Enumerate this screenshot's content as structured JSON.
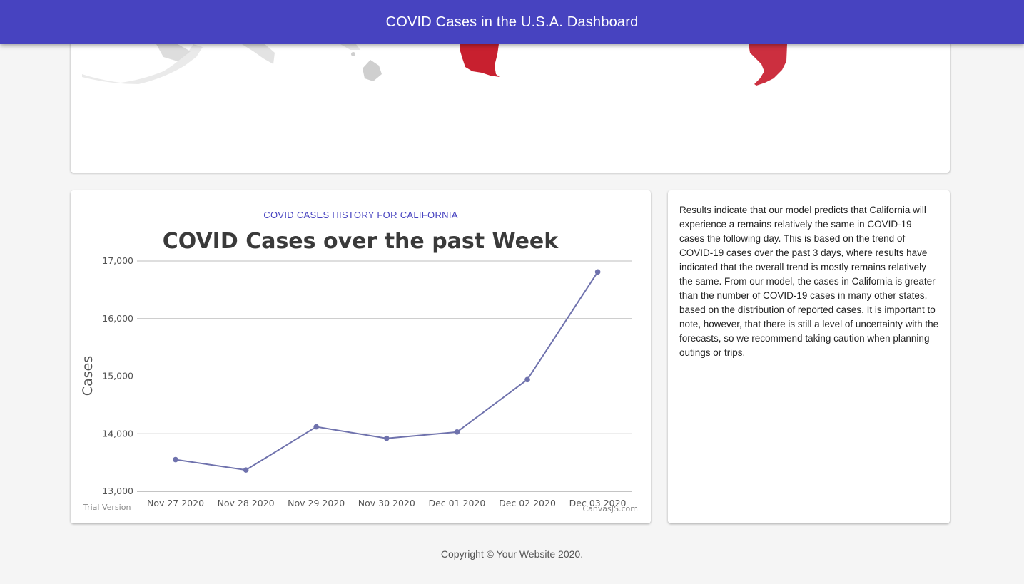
{
  "header": {
    "title": "COVID Cases in the U.S.A. Dashboard"
  },
  "colors": {
    "header": "#4743c0",
    "map_state": "#c8202f",
    "line": "#6f72ad"
  },
  "chart_section": {
    "heading": "COVID CASES HISTORY FOR CALIFORNIA"
  },
  "chart_data": {
    "type": "line",
    "title": "COVID Cases over the past Week",
    "xlabel": "",
    "ylabel": "Cases",
    "categories": [
      "Nov 27 2020",
      "Nov 28 2020",
      "Nov 29 2020",
      "Nov 30 2020",
      "Dec 01 2020",
      "Dec 02 2020",
      "Dec 03 2020"
    ],
    "series": [
      {
        "values": [
          13550,
          13370,
          14120,
          13920,
          14030,
          14940,
          16810
        ]
      }
    ],
    "ylim": [
      13000,
      17000
    ],
    "yticks": [
      13000,
      14000,
      15000,
      16000,
      17000
    ],
    "ytick_labels": [
      "13,000",
      "14,000",
      "15,000",
      "16,000",
      "17,000"
    ],
    "grid": true,
    "watermark_left": "Trial Version",
    "watermark_right": "CanvasJS.com"
  },
  "results": {
    "text": "Results indicate that our model predicts that California will experience a remains relatively the same in COVID-19 cases the following day. This is based on the trend of COVID-19 cases over the past 3 days, where results have indicated that the overall trend is mostly remains relatively the same. From our model, the cases in California is greater than the number of COVID-19 cases in many other states, based on the distribution of reported cases. It is important to note, however, that there is still a level of uncertainty with the forecasts, so we recommend taking caution when planning outings or trips."
  },
  "footer": {
    "text": "Copyright © Your Website 2020."
  }
}
